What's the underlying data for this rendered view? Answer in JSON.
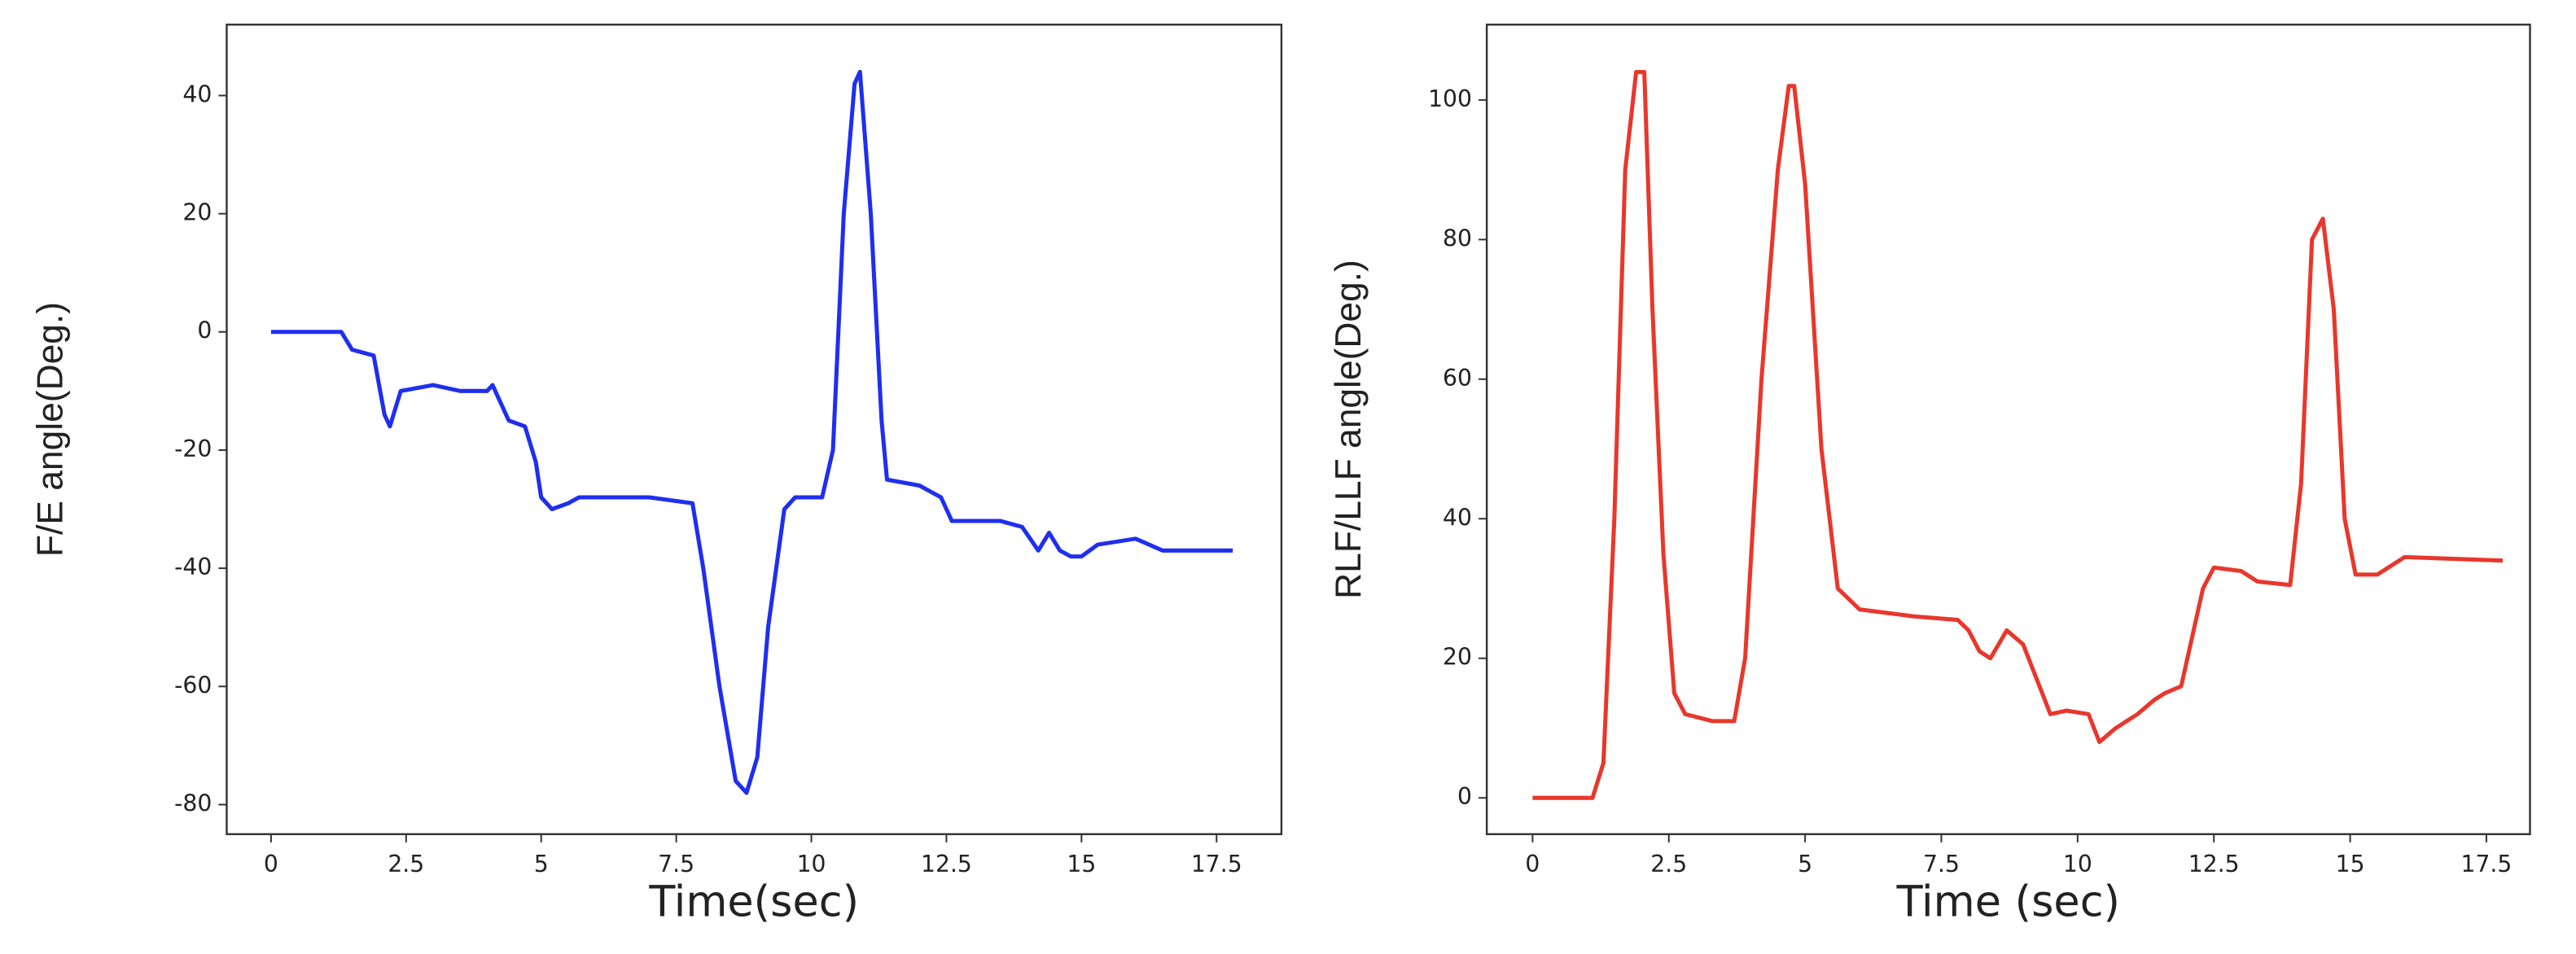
{
  "chart_data": [
    {
      "type": "line",
      "x_label": "Time(sec)",
      "y_label": "F/E angle(Deg.)",
      "xlim": [
        -0.82,
        18.7
      ],
      "ylim": [
        -85,
        52
      ],
      "xticks": [
        0,
        2.5,
        5,
        7.5,
        10,
        12.5,
        15,
        17.5
      ],
      "yticks": [
        -80,
        -60,
        -40,
        -20,
        0,
        20,
        40
      ],
      "x": [
        0,
        1.3,
        1.5,
        1.9,
        2.1,
        2.2,
        2.4,
        3,
        3.5,
        4.0,
        4.1,
        4.4,
        4.7,
        4.9,
        5.0,
        5.2,
        5.5,
        5.7,
        7,
        7.8,
        8.0,
        8.3,
        8.6,
        8.8,
        9.0,
        9.2,
        9.5,
        9.7,
        10.2,
        10.4,
        10.6,
        10.8,
        10.9,
        11.1,
        11.3,
        11.4,
        12.0,
        12.4,
        12.6,
        13.5,
        13.9,
        14.2,
        14.4,
        14.6,
        14.8,
        15.0,
        15.3,
        16.0,
        16.5,
        17.8
      ],
      "series": [
        {
          "color": "#1f2fef",
          "values": [
            0,
            0,
            -3,
            -4,
            -14,
            -16,
            -10,
            -9,
            -10,
            -10,
            -9,
            -15,
            -16,
            -22,
            -28,
            -30,
            -29,
            -28,
            -28,
            -29,
            -40,
            -60,
            -76,
            -78,
            -72,
            -50,
            -30,
            -28,
            -28,
            -20,
            20,
            42,
            44,
            20,
            -15,
            -25,
            -26,
            -28,
            -32,
            -32,
            -33,
            -37,
            -34,
            -37,
            -38,
            -38,
            -36,
            -35,
            -37,
            -37
          ]
        }
      ]
    },
    {
      "type": "line",
      "x_label": "Time (sec)",
      "y_label": "RLF/LLF angle(Deg.)",
      "xlim": [
        -0.84,
        18.3
      ],
      "ylim": [
        -5.2,
        110.8
      ],
      "xticks": [
        0,
        2.5,
        5,
        7.5,
        10,
        12.5,
        15,
        17.5
      ],
      "yticks": [
        0,
        20,
        40,
        60,
        80,
        100
      ],
      "x": [
        0,
        1.1,
        1.3,
        1.5,
        1.7,
        1.9,
        2.05,
        2.2,
        2.4,
        2.6,
        2.8,
        3.3,
        3.7,
        3.9,
        4.2,
        4.5,
        4.7,
        4.8,
        5.0,
        5.3,
        5.6,
        6,
        7,
        7.8,
        8.0,
        8.2,
        8.4,
        8.7,
        9.0,
        9.3,
        9.5,
        9.8,
        10.2,
        10.4,
        10.7,
        11.1,
        11.4,
        11.6,
        11.9,
        12.3,
        12.5,
        13.0,
        13.3,
        13.9,
        14.1,
        14.3,
        14.5,
        14.7,
        14.9,
        15.1,
        15.5,
        16.0,
        17.8
      ],
      "series": [
        {
          "color": "#e8372c",
          "values": [
            0,
            0,
            5,
            40,
            90,
            104,
            104,
            70,
            35,
            15,
            12,
            11,
            11,
            20,
            60,
            90,
            102,
            102,
            88,
            50,
            30,
            27,
            26,
            25.5,
            24,
            21,
            20,
            24,
            22,
            16,
            12,
            12.5,
            12,
            8,
            10,
            12,
            14,
            15,
            16,
            30,
            33,
            32.5,
            31,
            30.5,
            45,
            80,
            83,
            70,
            40,
            32,
            32,
            34.5,
            34
          ]
        }
      ]
    }
  ]
}
